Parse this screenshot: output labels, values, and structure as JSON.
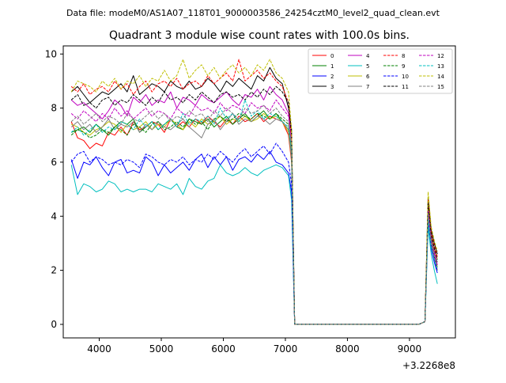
{
  "chart_data": {
    "type": "line",
    "suptitle": "Data file: modeM0/AS1A07_118T01_9000003586_24254cztM0_level2_quad_clean.evt",
    "title": "Quadrant 3 module wise count rates with 100.0s bins.",
    "xlabel": "",
    "ylabel": "",
    "x_offset_label": "+3.2268e8",
    "xlim": [
      3420,
      9740
    ],
    "ylim": [
      -0.5,
      10.3
    ],
    "x_ticks": [
      4000,
      5000,
      6000,
      7000,
      8000,
      9000
    ],
    "y_ticks": [
      0,
      2,
      4,
      6,
      8,
      10
    ],
    "legend_position": "top-right",
    "x": [
      3550,
      3650,
      3750,
      3850,
      3950,
      4050,
      4150,
      4250,
      4350,
      4450,
      4550,
      4650,
      4750,
      4850,
      4950,
      5050,
      5150,
      5250,
      5350,
      5450,
      5550,
      5650,
      5750,
      5850,
      5950,
      6050,
      6150,
      6250,
      6350,
      6450,
      6550,
      6650,
      6750,
      6850,
      6950,
      7050,
      7100,
      7150,
      7250,
      7350,
      7450,
      7550,
      7650,
      7750,
      7850,
      7950,
      8050,
      8150,
      8250,
      8350,
      8450,
      8550,
      8650,
      8750,
      8850,
      8950,
      9050,
      9150,
      9250,
      9300,
      9350,
      9400,
      9450
    ],
    "series": [
      {
        "name": "0",
        "color": "#ff0000",
        "dash": "solid",
        "values": [
          7.5,
          6.9,
          6.8,
          6.5,
          6.7,
          6.6,
          7.1,
          7.0,
          7.3,
          7.0,
          7.5,
          7.2,
          7.3,
          7.5,
          7.4,
          7.1,
          7.6,
          7.3,
          7.5,
          7.3,
          7.6,
          7.4,
          7.7,
          7.5,
          7.3,
          7.6,
          7.4,
          7.7,
          7.5,
          7.6,
          7.8,
          7.5,
          7.7,
          7.6,
          7.5,
          7.0,
          6.0,
          0.0,
          0,
          0,
          0,
          0,
          0,
          0,
          0,
          0,
          0,
          0,
          0,
          0,
          0,
          0,
          0,
          0,
          0,
          0,
          0,
          0,
          0.1,
          4.4,
          3.2,
          2.5,
          2.0
        ]
      },
      {
        "name": "1",
        "color": "#008000",
        "dash": "solid",
        "values": [
          7.1,
          7.2,
          7.3,
          7.1,
          7.4,
          7.2,
          7.0,
          7.3,
          7.5,
          7.4,
          7.6,
          7.1,
          7.3,
          7.5,
          7.2,
          7.4,
          7.6,
          7.3,
          7.2,
          7.6,
          7.5,
          7.4,
          7.6,
          7.3,
          7.5,
          7.7,
          7.4,
          7.6,
          7.8,
          7.5,
          7.7,
          7.9,
          7.6,
          7.8,
          7.5,
          7.2,
          6.2,
          0.0,
          0,
          0,
          0,
          0,
          0,
          0,
          0,
          0,
          0,
          0,
          0,
          0,
          0,
          0,
          0,
          0,
          0,
          0,
          0,
          0,
          0.1,
          4.2,
          3.0,
          2.6,
          2.3
        ]
      },
      {
        "name": "2",
        "color": "#0000ff",
        "dash": "solid",
        "values": [
          6.1,
          5.4,
          6.0,
          5.9,
          6.2,
          5.8,
          5.5,
          6.0,
          6.1,
          5.6,
          5.7,
          5.6,
          6.2,
          6.0,
          5.5,
          5.9,
          5.6,
          5.8,
          6.0,
          5.7,
          6.1,
          6.3,
          5.8,
          6.2,
          5.9,
          6.2,
          5.7,
          6.1,
          6.2,
          6.0,
          6.3,
          6.1,
          6.4,
          6.0,
          5.9,
          5.6,
          4.9,
          0.0,
          0,
          0,
          0,
          0,
          0,
          0,
          0,
          0,
          0,
          0,
          0,
          0,
          0,
          0,
          0,
          0,
          0,
          0,
          0,
          0,
          0.1,
          3.8,
          2.8,
          2.3,
          1.9
        ]
      },
      {
        "name": "3",
        "color": "#000000",
        "dash": "solid",
        "values": [
          8.6,
          8.8,
          8.5,
          8.2,
          8.4,
          8.6,
          8.5,
          8.7,
          8.9,
          8.6,
          9.2,
          8.5,
          8.7,
          8.9,
          8.8,
          8.6,
          9.0,
          8.8,
          8.7,
          9.0,
          8.7,
          8.8,
          9.1,
          8.9,
          8.6,
          9.0,
          8.8,
          9.1,
          8.9,
          8.7,
          9.2,
          9.0,
          9.5,
          9.1,
          8.9,
          8.0,
          7.2,
          0.0,
          0,
          0,
          0,
          0,
          0,
          0,
          0,
          0,
          0,
          0,
          0,
          0,
          0,
          0,
          0,
          0,
          0,
          0,
          0,
          0,
          0.1,
          4.7,
          3.5,
          3.0,
          2.6
        ]
      },
      {
        "name": "4",
        "color": "#bf00bf",
        "dash": "solid",
        "values": [
          8.3,
          8.1,
          8.2,
          8.0,
          7.8,
          7.6,
          7.9,
          8.3,
          8.1,
          7.7,
          8.4,
          8.2,
          8.5,
          8.1,
          8.3,
          8.2,
          8.6,
          8.0,
          8.4,
          8.3,
          8.1,
          8.5,
          8.3,
          8.2,
          8.4,
          8.6,
          8.3,
          8.1,
          8.5,
          8.4,
          8.7,
          8.3,
          8.8,
          8.5,
          8.3,
          7.8,
          6.8,
          0.0,
          0,
          0,
          0,
          0,
          0,
          0,
          0,
          0,
          0,
          0,
          0,
          0,
          0,
          0,
          0,
          0,
          0,
          0,
          0,
          0,
          0.1,
          4.3,
          3.1,
          2.7,
          2.2
        ]
      },
      {
        "name": "5",
        "color": "#00bfbf",
        "dash": "solid",
        "values": [
          5.9,
          4.8,
          5.2,
          5.1,
          4.9,
          5.0,
          5.3,
          5.2,
          4.9,
          5.0,
          4.9,
          5.0,
          5.0,
          4.9,
          5.2,
          5.1,
          5.0,
          5.2,
          4.8,
          5.4,
          5.1,
          5.0,
          5.3,
          5.4,
          5.9,
          5.6,
          5.5,
          5.6,
          5.8,
          5.6,
          5.5,
          5.7,
          5.8,
          5.9,
          5.8,
          5.5,
          4.6,
          0.0,
          0,
          0,
          0,
          0,
          0,
          0,
          0,
          0,
          0,
          0,
          0,
          0,
          0,
          0,
          0,
          0,
          0,
          0,
          0,
          0,
          0.1,
          3.6,
          2.6,
          2.0,
          1.5
        ]
      },
      {
        "name": "6",
        "color": "#bfbf00",
        "dash": "solid",
        "values": [
          7.4,
          7.3,
          7.1,
          7.0,
          7.2,
          7.3,
          7.5,
          7.4,
          7.1,
          7.4,
          7.2,
          7.3,
          7.5,
          7.2,
          7.4,
          7.3,
          7.6,
          7.4,
          7.2,
          7.5,
          7.3,
          7.6,
          7.4,
          7.5,
          7.7,
          7.4,
          7.6,
          7.5,
          7.7,
          7.5,
          7.6,
          7.8,
          7.6,
          7.7,
          7.5,
          7.1,
          6.1,
          0.0,
          0,
          0,
          0,
          0,
          0,
          0,
          0,
          0,
          0,
          0,
          0,
          0,
          0,
          0,
          0,
          0,
          0,
          0,
          0,
          0,
          0.1,
          4.5,
          3.3,
          2.8,
          2.4
        ]
      },
      {
        "name": "7",
        "color": "#808080",
        "dash": "solid",
        "values": [
          7.3,
          7.5,
          7.2,
          7.4,
          7.1,
          7.3,
          7.6,
          7.2,
          7.4,
          7.3,
          7.5,
          7.1,
          7.4,
          7.2,
          7.5,
          7.3,
          7.2,
          7.4,
          7.6,
          7.3,
          7.1,
          6.9,
          7.4,
          7.6,
          7.2,
          7.5,
          7.8,
          7.4,
          7.6,
          7.5,
          7.7,
          7.6,
          7.4,
          7.6,
          7.5,
          7.2,
          6.1,
          0.0,
          0,
          0,
          0,
          0,
          0,
          0,
          0,
          0,
          0,
          0,
          0,
          0,
          0,
          0,
          0,
          0,
          0,
          0,
          0,
          0,
          0.1,
          4.3,
          3.2,
          2.6,
          2.1
        ]
      },
      {
        "name": "8",
        "color": "#ff0000",
        "dash": "dashed",
        "values": [
          8.8,
          8.6,
          8.9,
          8.5,
          8.7,
          8.8,
          8.6,
          9.0,
          8.7,
          8.9,
          8.5,
          8.8,
          9.0,
          8.6,
          8.9,
          9.0,
          8.8,
          9.1,
          8.7,
          8.9,
          9.0,
          8.8,
          9.2,
          8.9,
          9.1,
          9.3,
          9.0,
          9.8,
          9.0,
          9.2,
          9.4,
          9.1,
          9.3,
          9.0,
          8.8,
          8.2,
          6.8,
          0.0,
          0,
          0,
          0,
          0,
          0,
          0,
          0,
          0,
          0,
          0,
          0,
          0,
          0,
          0,
          0,
          0,
          0,
          0,
          0,
          0,
          0.1,
          4.6,
          3.4,
          2.9,
          2.5
        ]
      },
      {
        "name": "9",
        "color": "#008000",
        "dash": "dashed",
        "values": [
          7.0,
          7.2,
          7.1,
          6.9,
          7.0,
          7.2,
          7.1,
          7.3,
          7.2,
          7.0,
          7.4,
          7.3,
          7.1,
          7.4,
          7.5,
          7.2,
          7.3,
          7.5,
          7.3,
          7.6,
          7.4,
          7.5,
          7.2,
          7.6,
          7.7,
          7.5,
          7.6,
          7.8,
          7.7,
          7.6,
          7.8,
          7.7,
          7.6,
          7.8,
          7.6,
          7.4,
          6.5,
          0.0,
          0,
          0,
          0,
          0,
          0,
          0,
          0,
          0,
          0,
          0,
          0,
          0,
          0,
          0,
          0,
          0,
          0,
          0,
          0,
          0,
          0.1,
          4.1,
          3.0,
          2.5,
          2.1
        ]
      },
      {
        "name": "10",
        "color": "#0000ff",
        "dash": "dashed",
        "values": [
          6.0,
          6.3,
          6.4,
          6.0,
          6.2,
          6.1,
          5.9,
          6.0,
          5.9,
          6.1,
          6.0,
          5.8,
          6.3,
          6.2,
          6.0,
          5.9,
          6.1,
          6.0,
          6.2,
          5.9,
          6.1,
          6.0,
          6.3,
          6.1,
          6.4,
          6.2,
          6.0,
          6.3,
          6.5,
          6.2,
          6.4,
          6.6,
          6.3,
          6.7,
          6.4,
          6.0,
          5.2,
          0.0,
          0,
          0,
          0,
          0,
          0,
          0,
          0,
          0,
          0,
          0,
          0,
          0,
          0,
          0,
          0,
          0,
          0,
          0,
          0,
          0,
          0.1,
          4.0,
          2.9,
          2.4,
          2.0
        ]
      },
      {
        "name": "11",
        "color": "#000000",
        "dash": "dashed",
        "values": [
          8.3,
          8.5,
          8.1,
          8.2,
          8.0,
          8.3,
          8.4,
          8.1,
          8.3,
          8.2,
          8.5,
          8.3,
          8.1,
          8.4,
          8.2,
          8.6,
          8.3,
          8.4,
          8.2,
          8.5,
          8.3,
          8.6,
          8.4,
          8.2,
          8.5,
          8.6,
          8.4,
          8.5,
          8.3,
          8.6,
          8.4,
          8.7,
          8.5,
          8.8,
          8.6,
          8.2,
          7.0,
          0.0,
          0,
          0,
          0,
          0,
          0,
          0,
          0,
          0,
          0,
          0,
          0,
          0,
          0,
          0,
          0,
          0,
          0,
          0,
          0,
          0,
          0.1,
          4.5,
          3.3,
          2.8,
          2.4
        ]
      },
      {
        "name": "12",
        "color": "#bf00bf",
        "dash": "dashed",
        "values": [
          7.8,
          7.6,
          7.9,
          7.7,
          7.5,
          7.8,
          7.6,
          8.0,
          7.7,
          7.9,
          7.6,
          7.8,
          8.0,
          7.7,
          7.9,
          7.8,
          7.6,
          8.0,
          7.8,
          7.7,
          8.1,
          7.9,
          8.0,
          7.8,
          8.2,
          7.9,
          8.1,
          8.0,
          7.8,
          8.2,
          8.0,
          8.1,
          7.9,
          8.3,
          8.0,
          7.7,
          6.6,
          0.0,
          0,
          0,
          0,
          0,
          0,
          0,
          0,
          0,
          0,
          0,
          0,
          0,
          0,
          0,
          0,
          0,
          0,
          0,
          0,
          0,
          0.1,
          4.2,
          3.1,
          2.6,
          2.2
        ]
      },
      {
        "name": "13",
        "color": "#00bfbf",
        "dash": "dashed",
        "values": [
          7.1,
          7.3,
          7.0,
          7.2,
          7.4,
          7.1,
          7.3,
          7.2,
          7.5,
          7.4,
          7.2,
          7.6,
          7.3,
          7.5,
          7.2,
          7.4,
          7.6,
          7.3,
          7.8,
          7.4,
          7.6,
          7.5,
          7.7,
          7.4,
          8.0,
          7.6,
          7.8,
          7.5,
          8.3,
          7.7,
          7.9,
          7.6,
          7.8,
          7.7,
          7.5,
          7.3,
          6.4,
          0.0,
          0,
          0,
          0,
          0,
          0,
          0,
          0,
          0,
          0,
          0,
          0,
          0,
          0,
          0,
          0,
          0,
          0,
          0,
          0,
          0,
          0.1,
          3.9,
          2.9,
          2.4,
          2.0
        ]
      },
      {
        "name": "14",
        "color": "#bfbf00",
        "dash": "dashed",
        "values": [
          8.6,
          9.0,
          8.9,
          8.8,
          8.6,
          9.0,
          8.8,
          9.1,
          8.7,
          9.0,
          8.9,
          9.2,
          8.8,
          9.1,
          9.0,
          9.4,
          9.0,
          9.2,
          9.8,
          9.1,
          9.4,
          9.6,
          9.2,
          9.5,
          9.1,
          9.4,
          9.6,
          9.3,
          9.5,
          9.2,
          9.6,
          9.4,
          9.8,
          9.3,
          9.1,
          8.6,
          7.2,
          0.0,
          0,
          0,
          0,
          0,
          0,
          0,
          0,
          0,
          0,
          0,
          0,
          0,
          0,
          0,
          0,
          0,
          0,
          0,
          0,
          0,
          0.1,
          4.9,
          3.6,
          3.1,
          2.7
        ]
      },
      {
        "name": "15",
        "color": "#808080",
        "dash": "dashed",
        "values": [
          7.5,
          7.7,
          7.4,
          7.6,
          7.8,
          7.5,
          7.7,
          7.6,
          7.4,
          7.8,
          7.6,
          7.5,
          7.7,
          7.9,
          7.6,
          7.8,
          7.5,
          7.7,
          7.6,
          7.9,
          7.7,
          7.8,
          7.5,
          7.9,
          7.7,
          8.0,
          7.8,
          7.6,
          8.0,
          7.8,
          7.9,
          8.1,
          7.8,
          8.0,
          7.7,
          7.5,
          6.5,
          0.0,
          0,
          0,
          0,
          0,
          0,
          0,
          0,
          0,
          0,
          0,
          0,
          0,
          0,
          0,
          0,
          0,
          0,
          0,
          0,
          0,
          0.1,
          4.1,
          3.0,
          2.5,
          2.1
        ]
      }
    ]
  }
}
